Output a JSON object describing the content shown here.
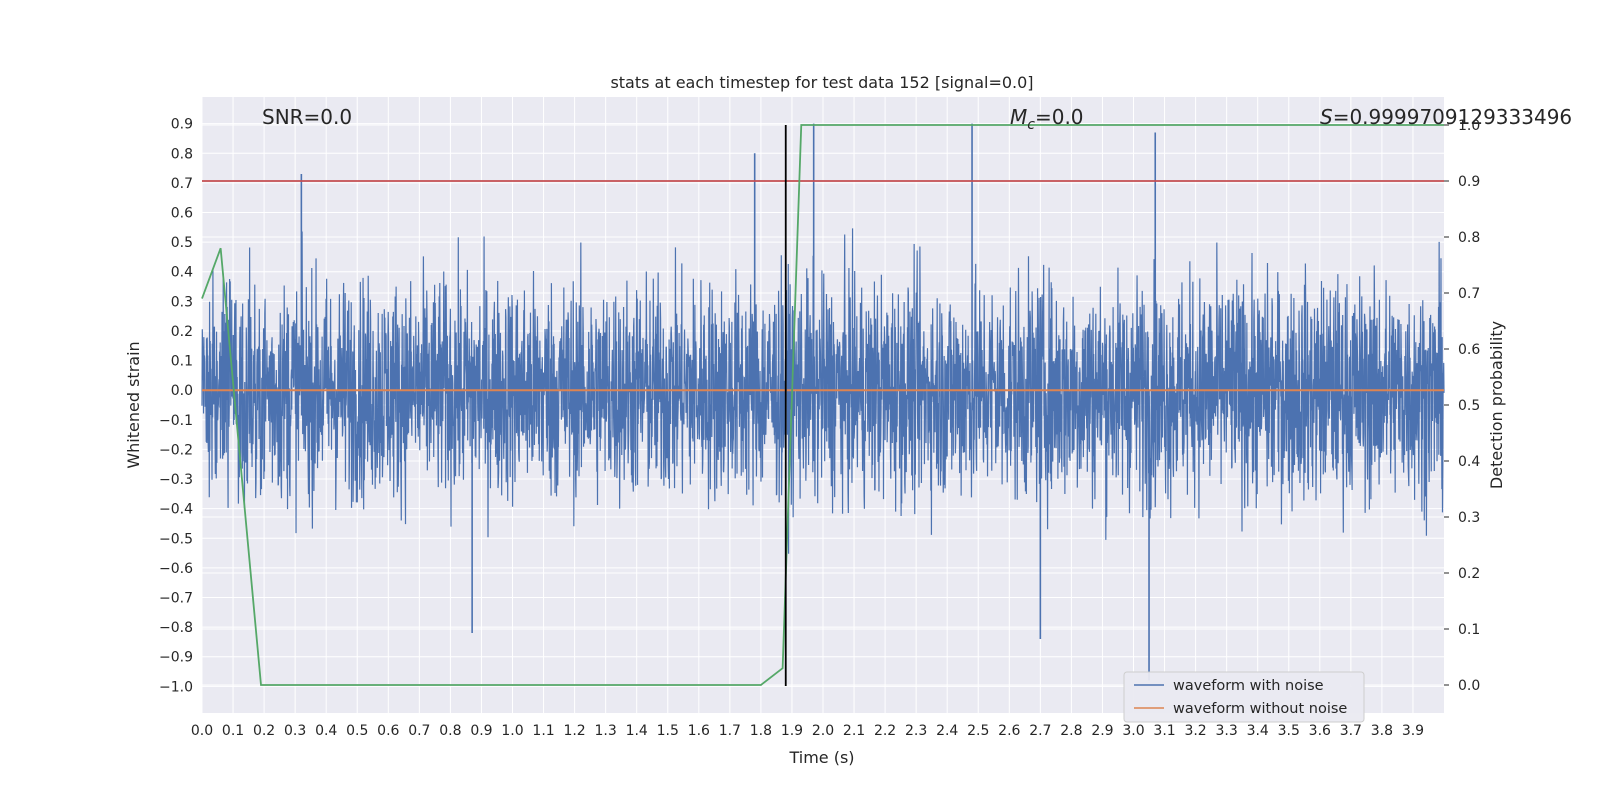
{
  "chart_data": {
    "type": "line",
    "title": "stats at each timestep for test data 152 [signal=0.0]",
    "xlabel": "Time (s)",
    "ylabel_left": "Whitened strain",
    "ylabel_right": "Detection probability",
    "xlim": [
      0.0,
      4.0
    ],
    "ylim_left": [
      -1.09,
      0.99
    ],
    "ylim_right": [
      -0.05,
      1.05
    ],
    "x_ticks": [
      "0.0",
      "0.1",
      "0.2",
      "0.3",
      "0.4",
      "0.5",
      "0.6",
      "0.7",
      "0.8",
      "0.9",
      "1.0",
      "1.1",
      "1.2",
      "1.3",
      "1.4",
      "1.5",
      "1.6",
      "1.7",
      "1.8",
      "1.9",
      "2.0",
      "2.1",
      "2.2",
      "2.3",
      "2.4",
      "2.5",
      "2.6",
      "2.7",
      "2.8",
      "2.9",
      "3.0",
      "3.1",
      "3.2",
      "3.3",
      "3.4",
      "3.5",
      "3.6",
      "3.7",
      "3.8",
      "3.9"
    ],
    "y_ticks_left": [
      "−1.0",
      "−0.9",
      "−0.8",
      "−0.7",
      "−0.6",
      "−0.5",
      "−0.4",
      "−0.3",
      "−0.2",
      "−0.1",
      "0.0",
      "0.1",
      "0.2",
      "0.3",
      "0.4",
      "0.5",
      "0.6",
      "0.7",
      "0.8",
      "0.9"
    ],
    "y_ticks_right": [
      "0.0",
      "0.1",
      "0.2",
      "0.3",
      "0.4",
      "0.5",
      "0.6",
      "0.7",
      "0.8",
      "0.9",
      "1.0"
    ],
    "annotations": {
      "snr": "SNR=0.0",
      "mc_symbol": "M",
      "mc_sub": "c",
      "mc_value": "=0.0",
      "s_symbol": "S",
      "s_value": "=0.9999709129333496"
    },
    "grid": true,
    "legend_position": "lower-right",
    "series": [
      {
        "name": "waveform with noise",
        "color": "#4c72b0",
        "axis": "left",
        "description_kind": "noise",
        "amplitude_typical": 0.3,
        "extremes": [
          {
            "x": 0.32,
            "y": 0.73
          },
          {
            "x": 1.78,
            "y": 0.8
          },
          {
            "x": 1.97,
            "y": 0.9
          },
          {
            "x": 2.48,
            "y": 0.9
          },
          {
            "x": 3.07,
            "y": 0.87
          },
          {
            "x": 3.05,
            "y": -0.98
          },
          {
            "x": 0.87,
            "y": -0.82
          },
          {
            "x": 2.7,
            "y": -0.84
          }
        ]
      },
      {
        "name": "waveform without noise",
        "color": "#dd8452",
        "axis": "left",
        "x": [
          0.0,
          4.0
        ],
        "y": [
          0.0,
          0.0
        ]
      },
      {
        "name": "",
        "color": "#55a868",
        "axis": "right",
        "x": [
          0.0,
          0.06,
          0.19,
          0.25,
          1.8,
          1.87,
          1.93,
          2.0,
          4.0
        ],
        "y": [
          0.69,
          0.78,
          0.0,
          0.0,
          0.0,
          0.03,
          1.0,
          1.0,
          1.0
        ]
      }
    ],
    "threshold": {
      "axis": "right",
      "value": 0.9,
      "color": "#c44e52"
    },
    "vline": {
      "x": 1.88,
      "color": "#000000"
    }
  }
}
